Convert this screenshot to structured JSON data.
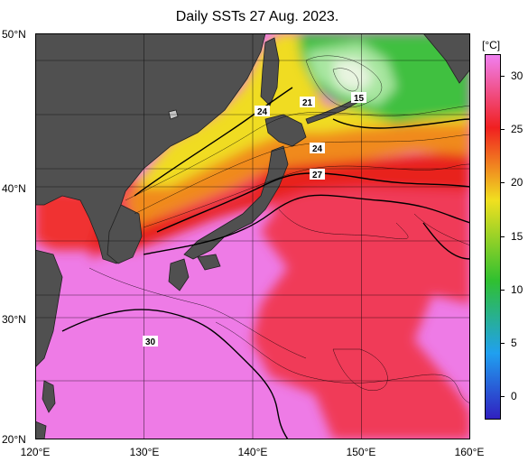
{
  "title": "Daily SSTs 27 Aug. 2023.",
  "axes": {
    "lat_labels": [
      "50°N",
      "40°N",
      "30°N",
      "20°N"
    ],
    "lon_labels": [
      "120°E",
      "130°E",
      "140°E",
      "150°E",
      "160°E"
    ],
    "lat_range": [
      20,
      50
    ],
    "lon_range": [
      120,
      160
    ]
  },
  "colorbar": {
    "unit": "[°C]",
    "ticks": [
      "30",
      "25",
      "20",
      "15",
      "10",
      "5",
      "0"
    ],
    "range": [
      -2,
      32
    ],
    "colors": {
      "cold": "#3020c0",
      "cool": "#20a0f0",
      "mid": "#30c030",
      "warm": "#f0e020",
      "hot": "#f02020",
      "hottest": "#f080f0"
    }
  },
  "contour_labels": [
    "24",
    "21",
    "15",
    "24",
    "27",
    "30"
  ],
  "land_color": "#505050"
}
